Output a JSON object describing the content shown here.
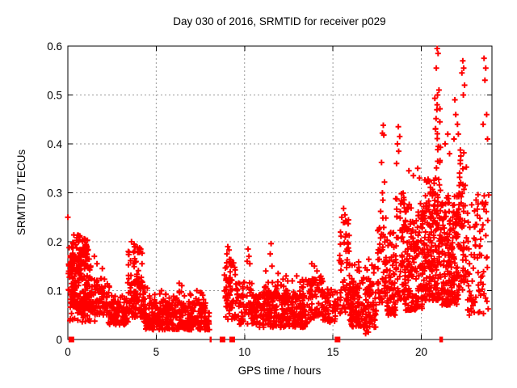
{
  "chart_data": {
    "type": "scatter",
    "title": "Day 030 of 2016, SRMTID for receiver p029",
    "xlabel": "GPS time / hours",
    "ylabel": "SRMTID / TECUs",
    "marker_style": "plus",
    "legend": "none",
    "grid": "dashed gray at major ticks",
    "colors": {
      "marker": "#ff0000",
      "grid": "#9a9a9a",
      "frame": "#000000",
      "background": "#ffffff"
    },
    "x_range": [
      0,
      24
    ],
    "y_range": [
      0,
      0.6
    ],
    "x_ticks": [
      {
        "v": 0,
        "label": "0",
        "grid": false
      },
      {
        "v": 5,
        "label": "5",
        "grid": true
      },
      {
        "v": 10,
        "label": "10",
        "grid": true
      },
      {
        "v": 15,
        "label": "15",
        "grid": true
      },
      {
        "v": 20,
        "label": "20",
        "grid": true
      }
    ],
    "y_ticks": [
      {
        "v": 0,
        "label": "0",
        "grid": false
      },
      {
        "v": 0.1,
        "label": "0.1",
        "grid": true
      },
      {
        "v": 0.2,
        "label": "0.2",
        "grid": true
      },
      {
        "v": 0.3,
        "label": "0.3",
        "grid": true
      },
      {
        "v": 0.4,
        "label": "0.4",
        "grid": true
      },
      {
        "v": 0.5,
        "label": "0.5",
        "grid": true
      },
      {
        "v": 0.6,
        "label": "0.6",
        "grid": false
      }
    ],
    "point_clusters": [
      {
        "x": [
          0.02,
          0.3
        ],
        "y": [
          0.07,
          0.2
        ],
        "n": 30,
        "bias": 1.2
      },
      {
        "x": [
          0.15,
          1.35
        ],
        "y": [
          0.06,
          0.175
        ],
        "n": 150,
        "bias": 1.3
      },
      {
        "x": [
          0.2,
          1.15
        ],
        "y": [
          0.16,
          0.215
        ],
        "n": 55,
        "bias": 1.1
      },
      {
        "x": [
          0.1,
          1.6
        ],
        "y": [
          0.035,
          0.08
        ],
        "n": 60,
        "bias": 1.0
      },
      {
        "x": [
          1.3,
          2.4
        ],
        "y": [
          0.05,
          0.125
        ],
        "n": 90,
        "bias": 1.4
      },
      {
        "x": [
          2.3,
          3.4
        ],
        "y": [
          0.03,
          0.09
        ],
        "n": 110,
        "bias": 1.3
      },
      {
        "x": [
          3.3,
          4.4
        ],
        "y": [
          0.045,
          0.12
        ],
        "n": 90,
        "bias": 1.2
      },
      {
        "x": [
          3.4,
          4.25
        ],
        "y": [
          0.11,
          0.19
        ],
        "n": 42,
        "bias": 1.1
      },
      {
        "x": [
          4.3,
          8.05
        ],
        "y": [
          0.02,
          0.075
        ],
        "n": 340,
        "bias": 1.25
      },
      {
        "x": [
          4.4,
          7.9
        ],
        "y": [
          0.07,
          0.1
        ],
        "n": 45,
        "bias": 1.4
      },
      {
        "x": [
          8.85,
          9.5
        ],
        "y": [
          0.04,
          0.17
        ],
        "n": 60,
        "bias": 1.3
      },
      {
        "x": [
          9.5,
          10.6
        ],
        "y": [
          0.03,
          0.12
        ],
        "n": 85,
        "bias": 1.3
      },
      {
        "x": [
          10.6,
          13.55
        ],
        "y": [
          0.025,
          0.095
        ],
        "n": 270,
        "bias": 1.2
      },
      {
        "x": [
          10.8,
          13.5
        ],
        "y": [
          0.085,
          0.125
        ],
        "n": 55,
        "bias": 1.4
      },
      {
        "x": [
          13.55,
          14.45
        ],
        "y": [
          0.04,
          0.13
        ],
        "n": 80,
        "bias": 1.2
      },
      {
        "x": [
          14.45,
          15.3
        ],
        "y": [
          0.035,
          0.105
        ],
        "n": 60,
        "bias": 1.2
      },
      {
        "x": [
          15.35,
          15.95
        ],
        "y": [
          0.05,
          0.245
        ],
        "n": 60,
        "bias": 1.15
      },
      {
        "x": [
          15.95,
          17.45
        ],
        "y": [
          0.025,
          0.115
        ],
        "n": 150,
        "bias": 1.25
      },
      {
        "x": [
          16.0,
          17.4
        ],
        "y": [
          0.11,
          0.165
        ],
        "n": 25,
        "bias": 1.3
      },
      {
        "x": [
          17.5,
          18.0
        ],
        "y": [
          0.07,
          0.25
        ],
        "n": 50,
        "bias": 1.35
      },
      {
        "x": [
          18.0,
          18.55
        ],
        "y": [
          0.05,
          0.22
        ],
        "n": 65,
        "bias": 1.3
      },
      {
        "x": [
          18.55,
          19.05
        ],
        "y": [
          0.08,
          0.33
        ],
        "n": 60,
        "bias": 1.35
      },
      {
        "x": [
          19.05,
          20.05
        ],
        "y": [
          0.06,
          0.28
        ],
        "n": 170,
        "bias": 1.4
      },
      {
        "x": [
          20.05,
          21.1
        ],
        "y": [
          0.08,
          0.33
        ],
        "n": 210,
        "bias": 1.45
      },
      {
        "x": [
          20.75,
          21.1
        ],
        "y": [
          0.33,
          0.5
        ],
        "n": 14,
        "bias": 1.0
      },
      {
        "x": [
          21.1,
          22.15
        ],
        "y": [
          0.07,
          0.3
        ],
        "n": 200,
        "bias": 1.4
      },
      {
        "x": [
          22.15,
          22.6
        ],
        "y": [
          0.1,
          0.4
        ],
        "n": 55,
        "bias": 1.3
      },
      {
        "x": [
          22.6,
          23.85
        ],
        "y": [
          0.05,
          0.3
        ],
        "n": 90,
        "bias": 1.35
      }
    ],
    "notable_points": [
      [
        0.0,
        0.25
      ],
      [
        1.5,
        0.17
      ],
      [
        1.65,
        0.155
      ],
      [
        1.95,
        0.145
      ],
      [
        3.6,
        0.2
      ],
      [
        3.75,
        0.195
      ],
      [
        4.5,
        0.105
      ],
      [
        5.3,
        0.1
      ],
      [
        6.3,
        0.115
      ],
      [
        6.45,
        0.11
      ],
      [
        7.3,
        0.1
      ],
      [
        7.5,
        0.095
      ],
      [
        9.05,
        0.19
      ],
      [
        9.12,
        0.183
      ],
      [
        9.0,
        0.175
      ],
      [
        10.2,
        0.185
      ],
      [
        10.25,
        0.17
      ],
      [
        10.15,
        0.16
      ],
      [
        10.3,
        0.155
      ],
      [
        11.5,
        0.196
      ],
      [
        11.45,
        0.175
      ],
      [
        11.55,
        0.15
      ],
      [
        11.2,
        0.14
      ],
      [
        11.9,
        0.135
      ],
      [
        12.35,
        0.13
      ],
      [
        12.95,
        0.13
      ],
      [
        13.8,
        0.155
      ],
      [
        13.95,
        0.15
      ],
      [
        14.1,
        0.14
      ],
      [
        15.6,
        0.268
      ],
      [
        15.68,
        0.255
      ],
      [
        15.5,
        0.25
      ],
      [
        16.85,
        0.012
      ],
      [
        16.9,
        0.018
      ],
      [
        16.95,
        0.025
      ],
      [
        17.0,
        0.015
      ],
      [
        17.85,
        0.438
      ],
      [
        17.8,
        0.422
      ],
      [
        17.88,
        0.418
      ],
      [
        17.75,
        0.362
      ],
      [
        17.92,
        0.322
      ],
      [
        17.8,
        0.3
      ],
      [
        17.83,
        0.285
      ],
      [
        17.7,
        0.262
      ],
      [
        18.7,
        0.435
      ],
      [
        18.78,
        0.415
      ],
      [
        18.65,
        0.4
      ],
      [
        18.72,
        0.385
      ],
      [
        18.6,
        0.36
      ],
      [
        19.3,
        0.345
      ],
      [
        19.55,
        0.335
      ],
      [
        19.8,
        0.35
      ],
      [
        19.9,
        0.33
      ],
      [
        20.9,
        0.595
      ],
      [
        20.95,
        0.585
      ],
      [
        20.85,
        0.555
      ],
      [
        21.0,
        0.51
      ],
      [
        20.92,
        0.5
      ],
      [
        20.88,
        0.47
      ],
      [
        21.05,
        0.445
      ],
      [
        20.8,
        0.43
      ],
      [
        21.9,
        0.49
      ],
      [
        21.95,
        0.46
      ],
      [
        22.05,
        0.44
      ],
      [
        21.85,
        0.41
      ],
      [
        22.1,
        0.42
      ],
      [
        21.5,
        0.42
      ],
      [
        21.35,
        0.4
      ],
      [
        21.6,
        0.38
      ],
      [
        22.35,
        0.57
      ],
      [
        22.4,
        0.555
      ],
      [
        22.3,
        0.545
      ],
      [
        22.45,
        0.52
      ],
      [
        22.38,
        0.5
      ],
      [
        23.55,
        0.575
      ],
      [
        23.65,
        0.555
      ],
      [
        23.6,
        0.53
      ],
      [
        23.7,
        0.46
      ],
      [
        23.5,
        0.44
      ],
      [
        23.75,
        0.41
      ]
    ],
    "zero_markers": [
      {
        "x": 0.2,
        "style": "square"
      },
      {
        "x": 8.08,
        "style": "thin"
      },
      {
        "x": 8.75,
        "style": "square"
      },
      {
        "x": 9.3,
        "style": "square"
      },
      {
        "x": 15.26,
        "style": "square"
      },
      {
        "x": 21.08,
        "style": "thin"
      },
      {
        "x": 21.17,
        "style": "thin"
      }
    ]
  }
}
